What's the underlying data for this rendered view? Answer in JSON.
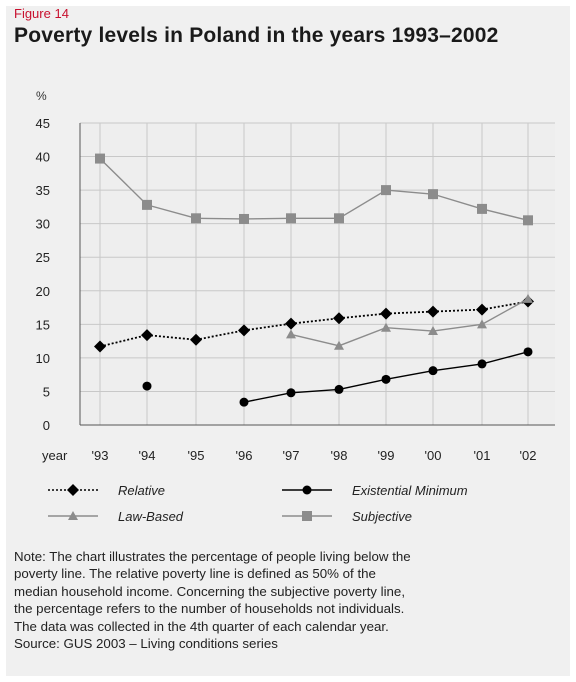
{
  "figure_label": "Figure 14",
  "title": "Poverty levels in Poland in the years 1993–2002",
  "chart_data": {
    "type": "line",
    "title": "Poverty levels in Poland in the years 1993–2002",
    "ylabel": "%",
    "xlabel": "year",
    "ylim": [
      0,
      45
    ],
    "yticks": [
      0,
      5,
      10,
      15,
      20,
      25,
      30,
      35,
      40,
      45
    ],
    "categories": [
      "'93",
      "'94",
      "'95",
      "'96",
      "'97",
      "'98",
      "'99",
      "'00",
      "'01",
      "'02"
    ],
    "grid": true,
    "legend_placement": "bottom",
    "series": [
      {
        "name": "Relative",
        "color": "#000000",
        "marker": "diamond",
        "line": "dotted",
        "values": [
          11.7,
          13.4,
          12.7,
          14.1,
          15.1,
          15.9,
          16.6,
          16.9,
          17.2,
          18.4
        ]
      },
      {
        "name": "Existential Minimum",
        "color": "#000000",
        "marker": "circle",
        "line": "solid",
        "values": [
          null,
          5.8,
          null,
          3.4,
          4.8,
          5.3,
          6.8,
          8.1,
          9.1,
          10.9
        ]
      },
      {
        "name": "Law-Based",
        "color": "#8c8c8c",
        "marker": "triangle",
        "line": "solid",
        "values": [
          null,
          null,
          null,
          null,
          13.5,
          11.8,
          14.5,
          14.0,
          15.0,
          18.8
        ]
      },
      {
        "name": "Subjective",
        "color": "#8c8c8c",
        "marker": "square",
        "line": "solid",
        "values": [
          39.7,
          32.8,
          30.8,
          30.7,
          30.8,
          30.8,
          35.0,
          34.4,
          32.2,
          30.5
        ]
      }
    ]
  },
  "note": [
    "Note: The chart illustrates the percentage of people living below the",
    "poverty line. The relative poverty line is defined as 50% of the",
    "median household income. Concerning the subjective poverty line,",
    "the percentage refers to the number of households not individuals.",
    "The data was collected in the 4th quarter of each calendar year.",
    "Source: GUS 2003 – Living conditions series"
  ]
}
